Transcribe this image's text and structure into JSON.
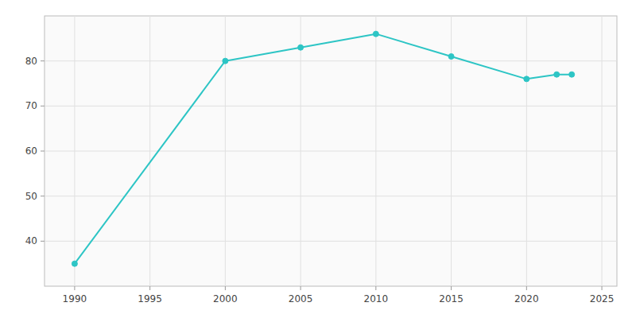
{
  "chart_data": {
    "type": "line",
    "x": [
      1990,
      2000,
      2005,
      2010,
      2015,
      2020,
      2022,
      2023
    ],
    "values": [
      35,
      80,
      83,
      86,
      81,
      76,
      77,
      77
    ],
    "color": "#2DC5C5",
    "marker": "circle",
    "xlim": [
      1988,
      2026
    ],
    "ylim": [
      30,
      90
    ],
    "xticks": [
      1990,
      1995,
      2000,
      2005,
      2010,
      2015,
      2020,
      2025
    ],
    "yticks": [
      40,
      50,
      60,
      70,
      80
    ],
    "grid": true
  }
}
